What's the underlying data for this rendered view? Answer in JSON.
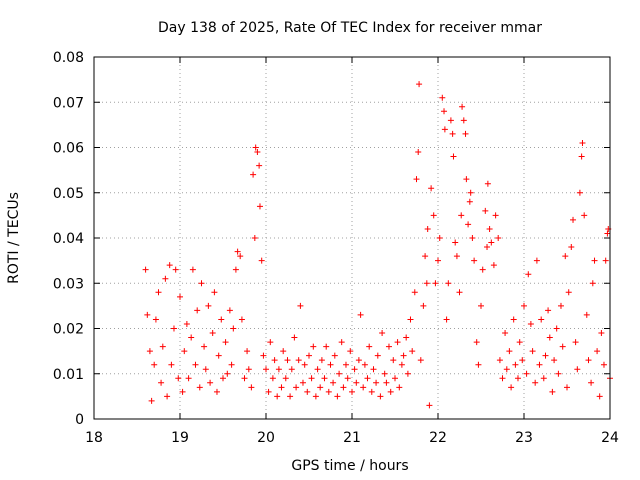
{
  "chart_data": {
    "type": "scatter",
    "title": "Day 138 of 2025, Rate Of TEC Index for receiver mmar",
    "xlabel": "GPS time / hours",
    "ylabel": "ROTI / TECUs",
    "xlim": [
      18,
      24
    ],
    "ylim": [
      0,
      0.08
    ],
    "x_ticks": [
      "18",
      "19",
      "20",
      "21",
      "22",
      "23",
      "24"
    ],
    "y_ticks": [
      "0",
      "0.01",
      "0.02",
      "0.03",
      "0.04",
      "0.05",
      "0.06",
      "0.07",
      "0.08"
    ],
    "grid": true,
    "marker": "plus",
    "series": [
      {
        "name": "ROTI",
        "color": "#ff0000",
        "points": [
          [
            18.6,
            0.033
          ],
          [
            18.62,
            0.023
          ],
          [
            18.65,
            0.015
          ],
          [
            18.67,
            0.004
          ],
          [
            18.7,
            0.012
          ],
          [
            18.72,
            0.022
          ],
          [
            18.75,
            0.028
          ],
          [
            18.78,
            0.008
          ],
          [
            18.8,
            0.016
          ],
          [
            18.83,
            0.031
          ],
          [
            18.85,
            0.005
          ],
          [
            18.88,
            0.034
          ],
          [
            18.9,
            0.012
          ],
          [
            18.93,
            0.02
          ],
          [
            18.95,
            0.033
          ],
          [
            18.98,
            0.009
          ],
          [
            19.0,
            0.027
          ],
          [
            19.03,
            0.006
          ],
          [
            19.05,
            0.015
          ],
          [
            19.08,
            0.021
          ],
          [
            19.1,
            0.009
          ],
          [
            19.13,
            0.018
          ],
          [
            19.15,
            0.033
          ],
          [
            19.18,
            0.012
          ],
          [
            19.2,
            0.024
          ],
          [
            19.23,
            0.007
          ],
          [
            19.25,
            0.03
          ],
          [
            19.28,
            0.016
          ],
          [
            19.3,
            0.011
          ],
          [
            19.33,
            0.025
          ],
          [
            19.35,
            0.008
          ],
          [
            19.38,
            0.019
          ],
          [
            19.4,
            0.028
          ],
          [
            19.43,
            0.006
          ],
          [
            19.45,
            0.014
          ],
          [
            19.48,
            0.022
          ],
          [
            19.5,
            0.009
          ],
          [
            19.53,
            0.017
          ],
          [
            19.55,
            0.01
          ],
          [
            19.58,
            0.024
          ],
          [
            19.6,
            0.012
          ],
          [
            19.62,
            0.02
          ],
          [
            19.65,
            0.033
          ],
          [
            19.67,
            0.037
          ],
          [
            19.7,
            0.036
          ],
          [
            19.72,
            0.022
          ],
          [
            19.75,
            0.009
          ],
          [
            19.78,
            0.015
          ],
          [
            19.8,
            0.011
          ],
          [
            19.83,
            0.007
          ],
          [
            19.85,
            0.054
          ],
          [
            19.87,
            0.04
          ],
          [
            19.88,
            0.06
          ],
          [
            19.9,
            0.059
          ],
          [
            19.92,
            0.056
          ],
          [
            19.93,
            0.047
          ],
          [
            19.95,
            0.035
          ],
          [
            19.97,
            0.014
          ],
          [
            20.0,
            0.011
          ],
          [
            20.03,
            0.006
          ],
          [
            20.05,
            0.017
          ],
          [
            20.08,
            0.009
          ],
          [
            20.1,
            0.013
          ],
          [
            20.13,
            0.005
          ],
          [
            20.15,
            0.011
          ],
          [
            20.18,
            0.007
          ],
          [
            20.2,
            0.015
          ],
          [
            20.23,
            0.009
          ],
          [
            20.25,
            0.013
          ],
          [
            20.28,
            0.005
          ],
          [
            20.3,
            0.011
          ],
          [
            20.33,
            0.018
          ],
          [
            20.35,
            0.007
          ],
          [
            20.38,
            0.013
          ],
          [
            20.4,
            0.025
          ],
          [
            20.43,
            0.008
          ],
          [
            20.45,
            0.012
          ],
          [
            20.48,
            0.006
          ],
          [
            20.5,
            0.014
          ],
          [
            20.53,
            0.009
          ],
          [
            20.55,
            0.016
          ],
          [
            20.58,
            0.005
          ],
          [
            20.6,
            0.011
          ],
          [
            20.63,
            0.007
          ],
          [
            20.65,
            0.013
          ],
          [
            20.68,
            0.009
          ],
          [
            20.7,
            0.016
          ],
          [
            20.73,
            0.006
          ],
          [
            20.75,
            0.012
          ],
          [
            20.78,
            0.008
          ],
          [
            20.8,
            0.014
          ],
          [
            20.83,
            0.005
          ],
          [
            20.85,
            0.01
          ],
          [
            20.88,
            0.017
          ],
          [
            20.9,
            0.007
          ],
          [
            20.93,
            0.012
          ],
          [
            20.95,
            0.009
          ],
          [
            20.98,
            0.015
          ],
          [
            21.0,
            0.006
          ],
          [
            21.03,
            0.011
          ],
          [
            21.05,
            0.008
          ],
          [
            21.08,
            0.013
          ],
          [
            21.1,
            0.023
          ],
          [
            21.13,
            0.007
          ],
          [
            21.15,
            0.012
          ],
          [
            21.18,
            0.009
          ],
          [
            21.2,
            0.016
          ],
          [
            21.23,
            0.006
          ],
          [
            21.25,
            0.011
          ],
          [
            21.28,
            0.008
          ],
          [
            21.3,
            0.014
          ],
          [
            21.33,
            0.005
          ],
          [
            21.35,
            0.019
          ],
          [
            21.38,
            0.01
          ],
          [
            21.4,
            0.008
          ],
          [
            21.43,
            0.016
          ],
          [
            21.45,
            0.006
          ],
          [
            21.48,
            0.013
          ],
          [
            21.5,
            0.009
          ],
          [
            21.53,
            0.017
          ],
          [
            21.55,
            0.007
          ],
          [
            21.58,
            0.012
          ],
          [
            21.6,
            0.014
          ],
          [
            21.63,
            0.018
          ],
          [
            21.65,
            0.01
          ],
          [
            21.68,
            0.022
          ],
          [
            21.7,
            0.015
          ],
          [
            21.73,
            0.028
          ],
          [
            21.75,
            0.053
          ],
          [
            21.77,
            0.059
          ],
          [
            21.78,
            0.074
          ],
          [
            21.8,
            0.013
          ],
          [
            21.83,
            0.025
          ],
          [
            21.85,
            0.036
          ],
          [
            21.87,
            0.03
          ],
          [
            21.88,
            0.042
          ],
          [
            21.9,
            0.003
          ],
          [
            21.92,
            0.051
          ],
          [
            21.95,
            0.045
          ],
          [
            21.97,
            0.03
          ],
          [
            22.0,
            0.035
          ],
          [
            22.02,
            0.04
          ],
          [
            22.05,
            0.071
          ],
          [
            22.07,
            0.068
          ],
          [
            22.08,
            0.064
          ],
          [
            22.1,
            0.022
          ],
          [
            22.12,
            0.03
          ],
          [
            22.15,
            0.066
          ],
          [
            22.17,
            0.063
          ],
          [
            22.18,
            0.058
          ],
          [
            22.2,
            0.039
          ],
          [
            22.22,
            0.036
          ],
          [
            22.25,
            0.028
          ],
          [
            22.27,
            0.045
          ],
          [
            22.28,
            0.069
          ],
          [
            22.3,
            0.066
          ],
          [
            22.32,
            0.063
          ],
          [
            22.33,
            0.053
          ],
          [
            22.35,
            0.043
          ],
          [
            22.37,
            0.048
          ],
          [
            22.38,
            0.05
          ],
          [
            22.4,
            0.04
          ],
          [
            22.42,
            0.035
          ],
          [
            22.45,
            0.017
          ],
          [
            22.47,
            0.012
          ],
          [
            22.5,
            0.025
          ],
          [
            22.52,
            0.033
          ],
          [
            22.55,
            0.046
          ],
          [
            22.57,
            0.038
          ],
          [
            22.58,
            0.052
          ],
          [
            22.6,
            0.042
          ],
          [
            22.62,
            0.039
          ],
          [
            22.65,
            0.034
          ],
          [
            22.67,
            0.045
          ],
          [
            22.7,
            0.04
          ],
          [
            22.72,
            0.013
          ],
          [
            22.75,
            0.009
          ],
          [
            22.78,
            0.019
          ],
          [
            22.8,
            0.011
          ],
          [
            22.83,
            0.015
          ],
          [
            22.85,
            0.007
          ],
          [
            22.88,
            0.022
          ],
          [
            22.9,
            0.012
          ],
          [
            22.93,
            0.009
          ],
          [
            22.95,
            0.017
          ],
          [
            22.98,
            0.013
          ],
          [
            23.0,
            0.025
          ],
          [
            23.03,
            0.01
          ],
          [
            23.05,
            0.032
          ],
          [
            23.08,
            0.021
          ],
          [
            23.1,
            0.015
          ],
          [
            23.13,
            0.008
          ],
          [
            23.15,
            0.035
          ],
          [
            23.18,
            0.012
          ],
          [
            23.2,
            0.022
          ],
          [
            23.23,
            0.009
          ],
          [
            23.25,
            0.014
          ],
          [
            23.28,
            0.024
          ],
          [
            23.3,
            0.018
          ],
          [
            23.33,
            0.006
          ],
          [
            23.35,
            0.013
          ],
          [
            23.38,
            0.02
          ],
          [
            23.4,
            0.01
          ],
          [
            23.43,
            0.025
          ],
          [
            23.45,
            0.016
          ],
          [
            23.48,
            0.036
          ],
          [
            23.5,
            0.007
          ],
          [
            23.52,
            0.028
          ],
          [
            23.55,
            0.038
          ],
          [
            23.57,
            0.044
          ],
          [
            23.6,
            0.017
          ],
          [
            23.62,
            0.011
          ],
          [
            23.65,
            0.05
          ],
          [
            23.67,
            0.058
          ],
          [
            23.68,
            0.061
          ],
          [
            23.7,
            0.045
          ],
          [
            23.73,
            0.023
          ],
          [
            23.75,
            0.013
          ],
          [
            23.78,
            0.008
          ],
          [
            23.8,
            0.03
          ],
          [
            23.82,
            0.035
          ],
          [
            23.85,
            0.015
          ],
          [
            23.88,
            0.005
          ],
          [
            23.9,
            0.019
          ],
          [
            23.93,
            0.012
          ],
          [
            23.95,
            0.035
          ],
          [
            23.97,
            0.041
          ],
          [
            23.98,
            0.042
          ],
          [
            24.0,
            0.009
          ]
        ]
      }
    ]
  }
}
